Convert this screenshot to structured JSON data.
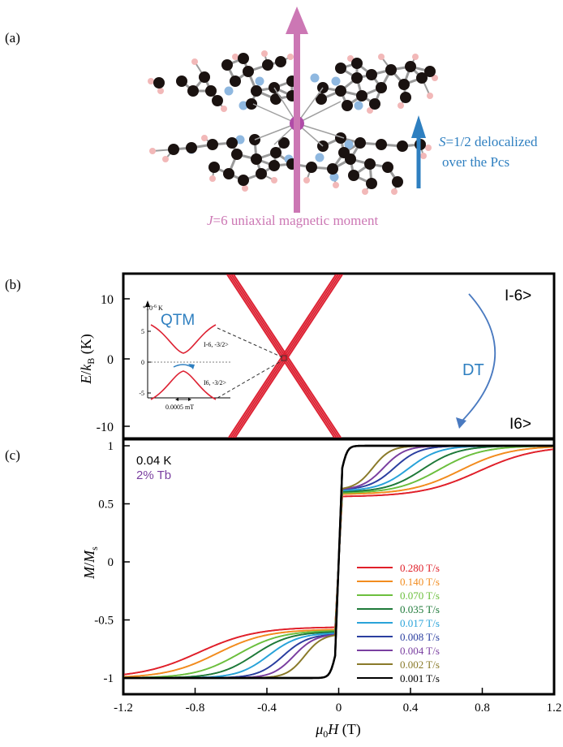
{
  "panel_a": {
    "label": "(a)",
    "j_label_sym": "J",
    "j_label_rest": "=6 uniaxial magnetic moment",
    "s_label_sym": "S",
    "s_label_rest": "=1/2 delocalized",
    "s_label_line2": "over the Pcs",
    "colors": {
      "j_arrow": "#cc77b4",
      "s_arrow": "#2e7fc0",
      "carbon": "#1a1210",
      "nitrogen": "#8fb8e0",
      "hydrogen": "#f2b8b8",
      "terbium": "#b04ca8"
    }
  },
  "panel_b": {
    "label": "(b)",
    "ylabel_main": "E",
    "ylabel_sub": "k",
    "ylabel_subscript": "B",
    "ylabel_unit": " (K)",
    "yticks": [
      "10",
      "0",
      "-10"
    ],
    "state_top": "I-6>",
    "state_bottom": "I6>",
    "dt_label": "DT",
    "inset": {
      "qtm_label": "QTM",
      "unit_label": "*10",
      "unit_exp": "-6",
      "unit_k": " K",
      "yticks": [
        "5",
        "0",
        "-5"
      ],
      "state_upper": "I-6, -3/2>",
      "state_lower": "I6, -3/2>",
      "scale_label": "0.0005 mT"
    },
    "color": "#dd2233"
  },
  "panel_c": {
    "label": "(c)",
    "temp_label": "0.04 K",
    "conc_label": "2% Tb",
    "ylabel_main": "M",
    "ylabel_div": "/",
    "ylabel_main2": "M",
    "ylabel_sub": "s",
    "xlabel_mu": "μ",
    "xlabel_sub": "0",
    "xlabel_rest": "H",
    "xlabel_unit": " (T)"
  },
  "chart_data": {
    "type": "line",
    "xlabel": "μ0H (T)",
    "ylabel": "M/Ms",
    "xlim": [
      -1.2,
      1.2
    ],
    "ylim": [
      -1,
      1
    ],
    "xticks": [
      "-1.2",
      "-0.8",
      "-0.4",
      "0",
      "0.4",
      "0.8",
      "1.2"
    ],
    "yticks": [
      "1",
      "0.5",
      "0",
      "-0.5",
      "-1"
    ],
    "legend_position": "lower-right",
    "series": [
      {
        "name": "0.280 T/s",
        "color": "#e0202a",
        "step": 0.56,
        "x_half": 0.78,
        "width": 0.16
      },
      {
        "name": "0.140 T/s",
        "color": "#f28c1f",
        "step": 0.58,
        "x_half": 0.68,
        "width": 0.14
      },
      {
        "name": "0.070 T/s",
        "color": "#6cbf3e",
        "step": 0.59,
        "x_half": 0.56,
        "width": 0.12
      },
      {
        "name": "0.035 T/s",
        "color": "#1f7a3a",
        "step": 0.6,
        "x_half": 0.47,
        "width": 0.1
      },
      {
        "name": "0.017 T/s",
        "color": "#29a3d9",
        "step": 0.61,
        "x_half": 0.39,
        "width": 0.085
      },
      {
        "name": "0.008 T/s",
        "color": "#2b3fa0",
        "step": 0.62,
        "x_half": 0.31,
        "width": 0.07
      },
      {
        "name": "0.004 T/s",
        "color": "#7a3fa0",
        "step": 0.62,
        "x_half": 0.25,
        "width": 0.06
      },
      {
        "name": "0.002 T/s",
        "color": "#8a7a2a",
        "step": 0.62,
        "x_half": 0.19,
        "width": 0.05
      },
      {
        "name": "0.001 T/s",
        "color": "#000000",
        "step": 0.62,
        "x_half": 0.02,
        "width": 0.015
      }
    ]
  }
}
